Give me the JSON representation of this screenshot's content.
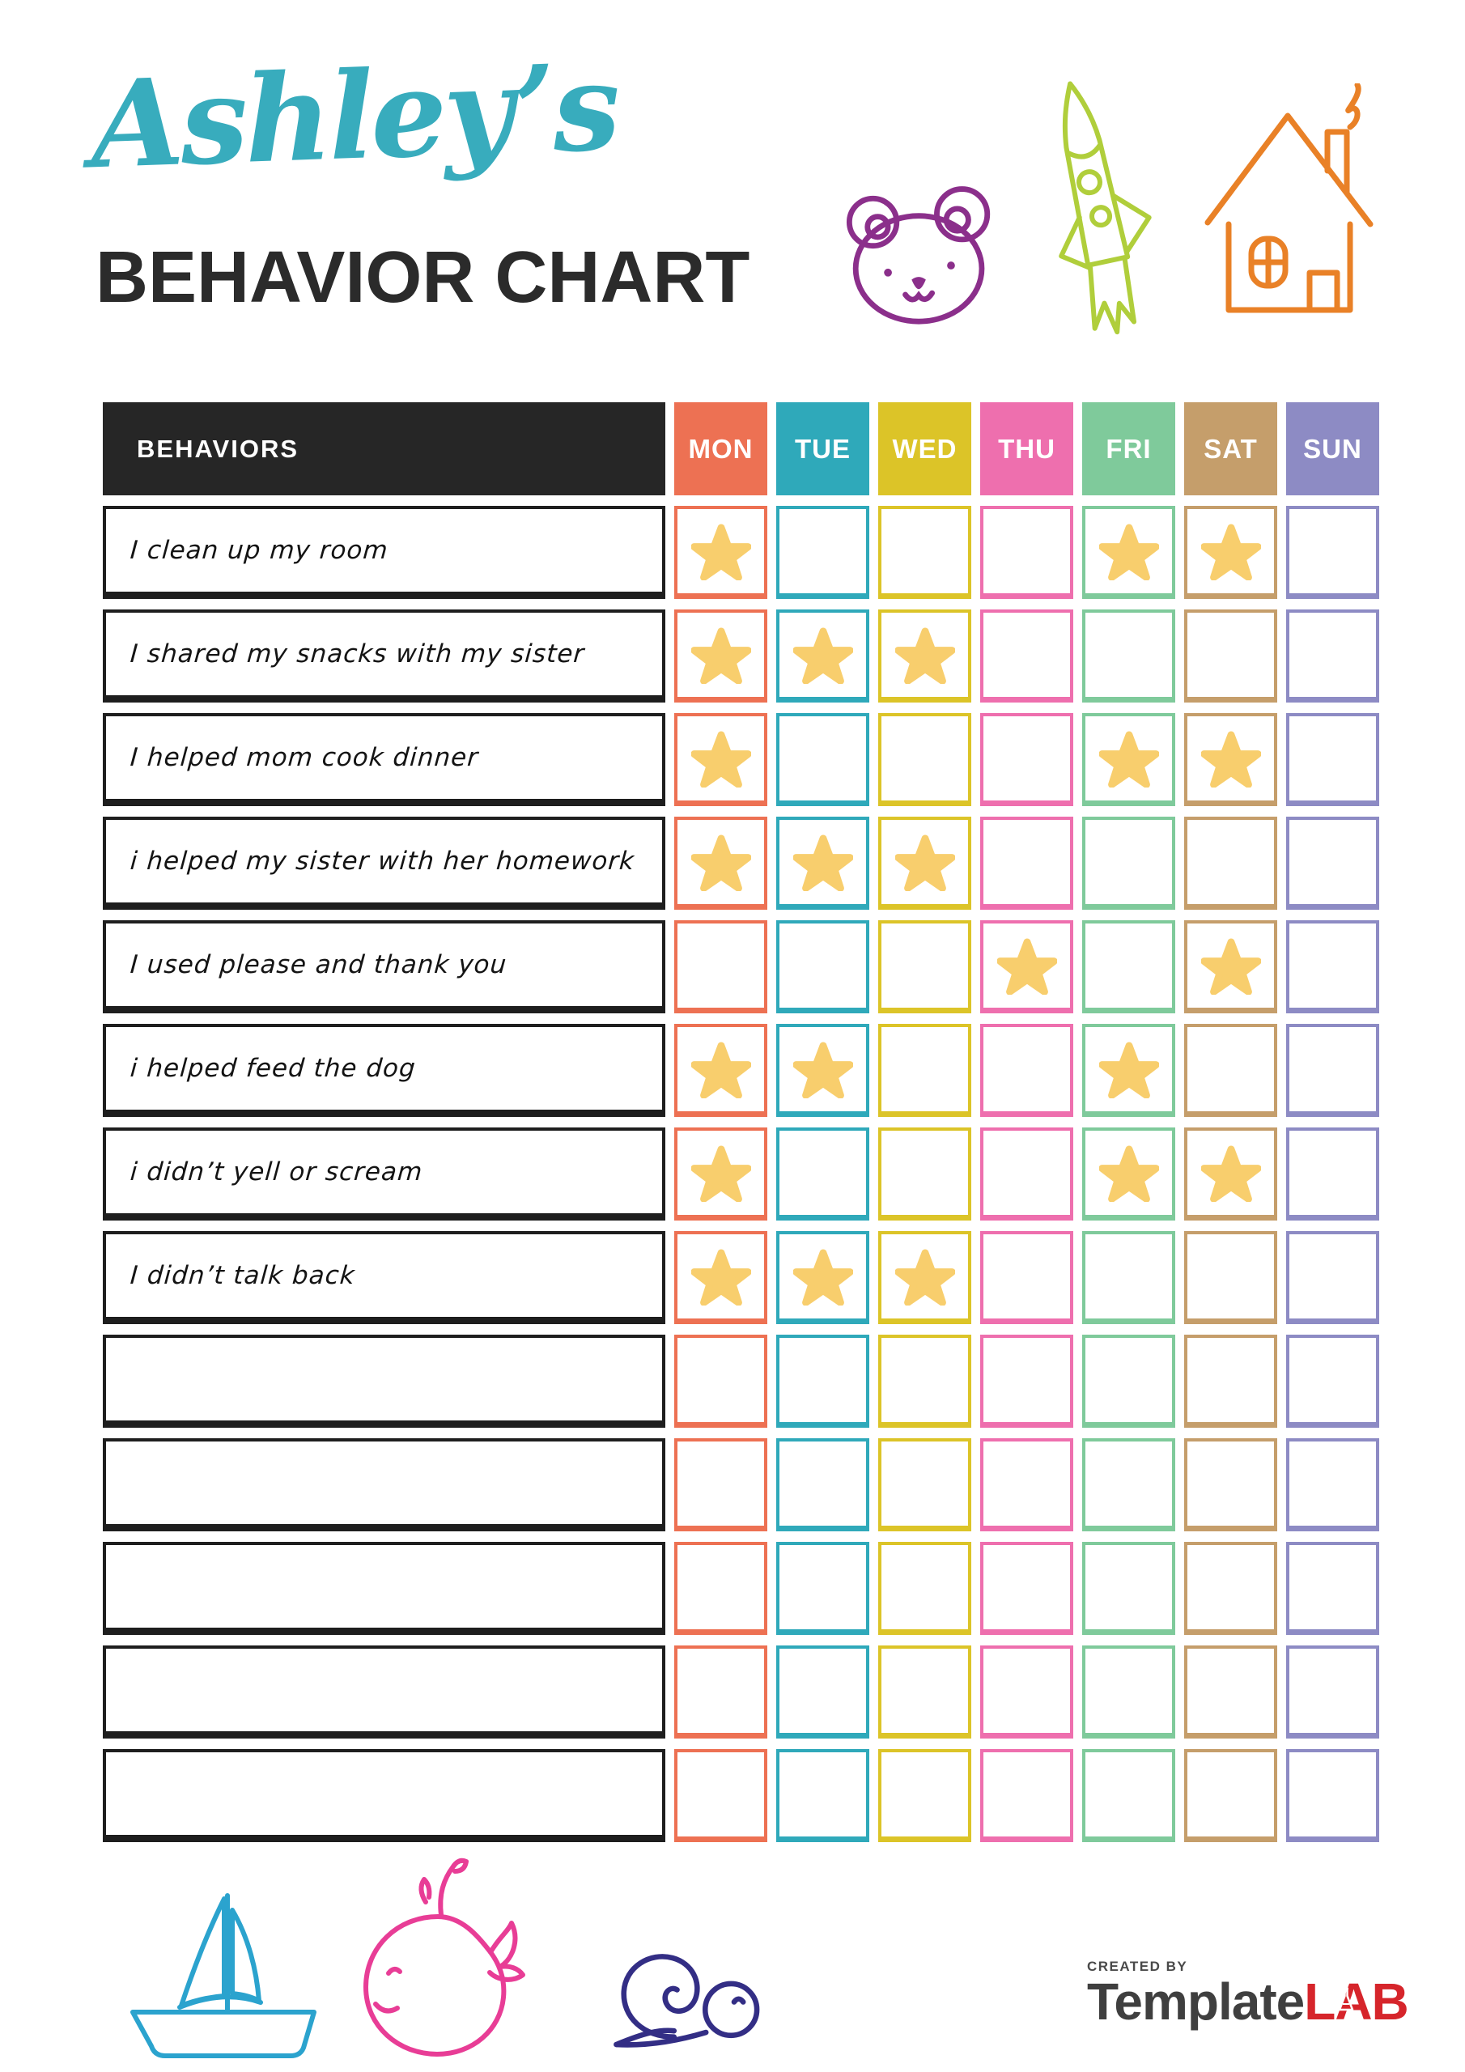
{
  "header": {
    "name": "Ashley’s",
    "name_color": "#38ACBD",
    "title": "BEHAVIOR CHART",
    "title_color": "#2B2B2B",
    "doodles": [
      {
        "icon": "bear-icon",
        "color": "#8B2F8B"
      },
      {
        "icon": "rocket-icon",
        "color": "#B0CE3B"
      },
      {
        "icon": "house-icon",
        "color": "#E98127"
      }
    ]
  },
  "table": {
    "behaviors_header": "BEHAVIORS",
    "header_bg": "#262626",
    "star_color": "#F8CE6D",
    "days": [
      {
        "label": "MON",
        "color": "#ED7153"
      },
      {
        "label": "TUE",
        "color": "#2FA9BA"
      },
      {
        "label": "WED",
        "color": "#DCC428"
      },
      {
        "label": "THU",
        "color": "#EE6FAE"
      },
      {
        "label": "FRI",
        "color": "#7FCA9B"
      },
      {
        "label": "SAT",
        "color": "#C59E6B"
      },
      {
        "label": "SUN",
        "color": "#8D8BC4"
      }
    ],
    "rows": [
      {
        "label": "I clean up my room",
        "stars": [
          "MON",
          "FRI",
          "SAT"
        ]
      },
      {
        "label": "I shared my snacks with my sister",
        "stars": [
          "MON",
          "TUE",
          "WED"
        ]
      },
      {
        "label": "I helped mom cook dinner",
        "stars": [
          "MON",
          "FRI",
          "SAT"
        ]
      },
      {
        "label": "i helped my sister with her homework",
        "stars": [
          "MON",
          "TUE",
          "WED"
        ]
      },
      {
        "label": "I used please and thank you",
        "stars": [
          "THU",
          "SAT"
        ]
      },
      {
        "label": "i helped feed the dog",
        "stars": [
          "MON",
          "TUE",
          "FRI"
        ]
      },
      {
        "label": "i didn’t yell or scream",
        "stars": [
          "MON",
          "FRI",
          "SAT"
        ]
      },
      {
        "label": "I didn’t talk back",
        "stars": [
          "MON",
          "TUE",
          "WED"
        ]
      },
      {
        "label": "",
        "stars": []
      },
      {
        "label": "",
        "stars": []
      },
      {
        "label": "",
        "stars": []
      },
      {
        "label": "",
        "stars": []
      },
      {
        "label": "",
        "stars": []
      }
    ]
  },
  "footer": {
    "doodles": [
      {
        "icon": "sailboat-icon",
        "color": "#2BA3CE"
      },
      {
        "icon": "whale-icon",
        "color": "#E83D96"
      },
      {
        "icon": "snail-icon",
        "color": "#332E85"
      }
    ],
    "logo": {
      "created_by": "CREATED BY",
      "brand_primary": "Template",
      "brand_accent": "LAB",
      "accent_color": "#D6252B"
    }
  }
}
